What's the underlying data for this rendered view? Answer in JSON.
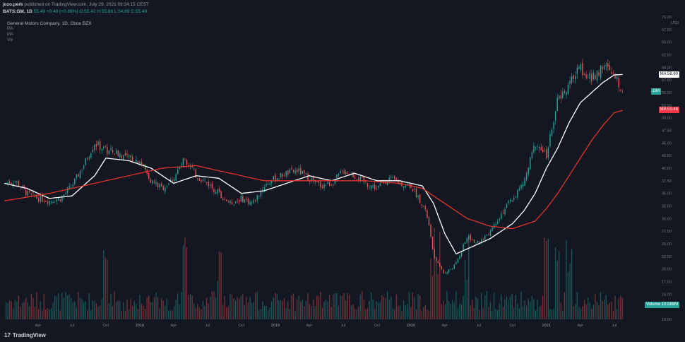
{
  "header": {
    "author": "jozo.perk",
    "published": "published on TradingView.com, July 29, 2021 09:34:15 CEST",
    "symbol": "BATS:GM, 1D",
    "last": "55.49",
    "change": "+0.49 (+0.89%)",
    "ohlc": "O:55.42 H:55.88 L:54.69 C:55.49"
  },
  "legend": {
    "title": "General Motors Company, 1D, Cboe BZX",
    "indicators": [
      "MA",
      "MA",
      "Vol"
    ]
  },
  "tags": {
    "ma_fast": {
      "name": "MA",
      "value": "58.60"
    },
    "price": {
      "name": "GM",
      "value": ""
    },
    "ma_slow": {
      "name": "MA",
      "value": "51.46"
    },
    "volume": {
      "name": "Volume",
      "value": "10.589M"
    }
  },
  "branding": {
    "logo": "TradingView"
  },
  "colors": {
    "background": "#131722",
    "up": "#26a69a",
    "down": "#ef5350",
    "ma_fast": "#ffffff",
    "ma_slow": "#e0352b",
    "text": "#787b86"
  },
  "chart_data": {
    "type": "candlestick",
    "title": "General Motors Company, 1D, Cboe BZX",
    "y_axis": {
      "label": "USD",
      "ticks": [
        10.0,
        12.5,
        15.0,
        17.5,
        20.0,
        22.5,
        25.0,
        27.5,
        30.0,
        32.5,
        35.0,
        37.5,
        40.0,
        42.5,
        45.0,
        47.5,
        50.0,
        52.5,
        55.0,
        57.5,
        60.0,
        62.5,
        65.0,
        67.5,
        70.0
      ],
      "range": [
        10.0,
        70.0
      ],
      "position": "right"
    },
    "x_axis": {
      "ticks": [
        "Apr",
        "Jul",
        "Oct",
        "2018",
        "Apr",
        "Jul",
        "Oct",
        "2019",
        "Apr",
        "Jul",
        "Oct",
        "2020",
        "Apr",
        "Jul",
        "Oct",
        "2021",
        "Apr",
        "Jul"
      ],
      "tick_months": [
        3,
        6,
        9,
        12,
        15,
        18,
        21,
        24,
        27,
        30,
        33,
        36,
        39,
        42,
        45,
        48,
        51,
        54
      ],
      "range_months": [
        0,
        55.7
      ],
      "start": "2017-01"
    },
    "price_path": {
      "x_months": [
        0,
        1,
        2,
        3,
        4,
        5,
        6,
        7,
        8,
        9,
        10,
        11,
        12,
        13,
        14,
        15,
        16,
        17,
        18,
        19,
        20,
        21,
        22,
        23,
        24,
        25,
        26,
        27,
        28,
        29,
        30,
        31,
        32,
        33,
        34,
        35,
        36,
        37,
        37.5,
        38,
        39,
        40,
        41,
        42,
        43,
        44,
        45,
        46,
        47,
        48,
        49,
        50,
        51,
        52,
        53,
        54,
        54.8
      ],
      "close": [
        37.0,
        37.5,
        35.0,
        34.0,
        33.5,
        34.0,
        36.5,
        40.5,
        45.0,
        43.5,
        43.0,
        42.0,
        41.5,
        37.5,
        36.0,
        38.0,
        42.0,
        38.5,
        37.0,
        35.0,
        33.0,
        34.0,
        33.0,
        36.5,
        38.0,
        39.0,
        39.5,
        38.0,
        36.5,
        37.0,
        39.5,
        38.5,
        37.0,
        36.0,
        38.0,
        37.0,
        36.5,
        33.0,
        30.0,
        22.5,
        19.0,
        21.0,
        26.5,
        25.0,
        27.5,
        31.0,
        34.0,
        37.0,
        45.0,
        42.5,
        53.5,
        56.5,
        60.0,
        57.5,
        60.5,
        58.0,
        55.5
      ]
    },
    "series": [
      {
        "name": "MA",
        "role": "fast moving average",
        "color": "#ffffff",
        "x_months": [
          0,
          2,
          4,
          6,
          8,
          9,
          11,
          13,
          15,
          17,
          19,
          21,
          23,
          25,
          27,
          29,
          31,
          33,
          35,
          37,
          38,
          39,
          40,
          41,
          43,
          45,
          46,
          47,
          48,
          49,
          50,
          51,
          52,
          53,
          54,
          54.8
        ],
        "values": [
          37.0,
          36.0,
          34.0,
          34.5,
          38.5,
          42.0,
          41.5,
          40.0,
          37.0,
          38.5,
          38.0,
          35.0,
          35.5,
          37.0,
          38.5,
          37.5,
          39.0,
          37.5,
          37.5,
          36.5,
          33.0,
          27.0,
          23.0,
          24.0,
          26.0,
          29.0,
          31.5,
          35.0,
          40.0,
          44.0,
          49.0,
          53.0,
          55.0,
          57.0,
          58.5,
          58.6
        ]
      },
      {
        "name": "MA",
        "role": "slow moving average",
        "color": "#e0352b",
        "x_months": [
          0,
          4,
          8,
          11,
          14,
          17,
          20,
          23,
          26,
          29,
          32,
          35,
          37,
          39,
          41,
          43,
          45,
          47,
          48,
          49,
          50,
          51,
          52,
          53,
          54,
          54.8
        ],
        "values": [
          33.5,
          35.0,
          37.0,
          38.5,
          40.0,
          40.5,
          39.0,
          37.5,
          37.5,
          37.5,
          37.5,
          37.0,
          36.0,
          33.0,
          30.0,
          28.5,
          28.0,
          29.5,
          32.0,
          35.0,
          38.5,
          42.0,
          45.5,
          48.5,
          51.0,
          51.5
        ]
      }
    ],
    "volume": {
      "label": "Volume",
      "last_value": "10.589M",
      "spike_months": [
        9,
        16,
        19,
        38,
        41,
        48,
        49,
        50
      ],
      "note": "daily volume bars at bottom of chart, green on up days and red on down days"
    },
    "grid": false,
    "legend_position": "top-left"
  }
}
